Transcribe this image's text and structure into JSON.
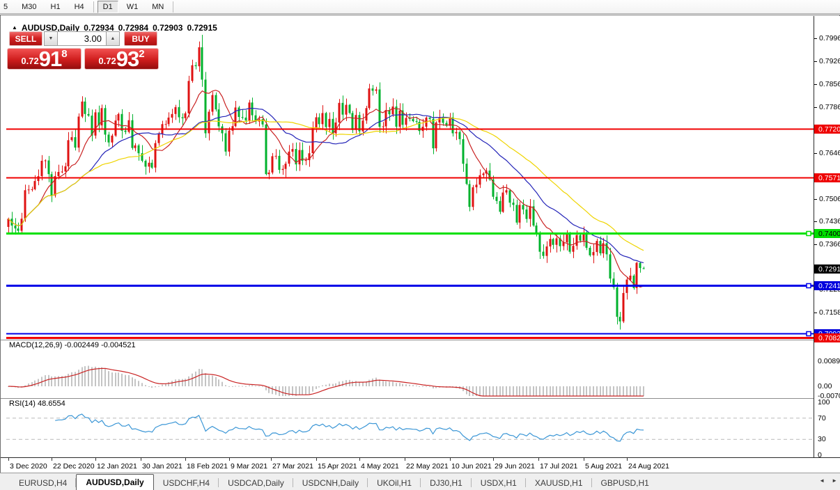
{
  "toolbar": {
    "buttons": [
      "5",
      "M30",
      "H1",
      "H4",
      "D1",
      "W1",
      "MN"
    ],
    "active": "D1"
  },
  "title": {
    "symbol": "AUDUSD,Daily",
    "open": "0.72934",
    "high": "0.72984",
    "low": "0.72903",
    "close": "0.72915"
  },
  "trade_panel": {
    "sell_label": "SELL",
    "buy_label": "BUY",
    "volume": "3.00",
    "sell_price_prefix": "0.72",
    "sell_price_big": "91",
    "sell_price_sup": "8",
    "buy_price_prefix": "0.72",
    "buy_price_big": "93",
    "buy_price_sup": "2"
  },
  "chart_data": {
    "type": "candlestick",
    "symbol": "AUDUSD",
    "timeframe": "Daily",
    "up_color": "#df1212",
    "down_color": "#00b22d",
    "first_open": 0.742,
    "closes": [
      0.7445,
      0.7424,
      0.7415,
      0.7408,
      0.7445,
      0.7532,
      0.7534,
      0.7535,
      0.756,
      0.7575,
      0.7622,
      0.7623,
      0.7581,
      0.7516,
      0.7575,
      0.7588,
      0.7589,
      0.7605,
      0.7685,
      0.7694,
      0.7662,
      0.7757,
      0.7803,
      0.7765,
      0.776,
      0.7699,
      0.777,
      0.773,
      0.7783,
      0.7702,
      0.7678,
      0.7699,
      0.7745,
      0.7765,
      0.7714,
      0.771,
      0.7746,
      0.7661,
      0.7669,
      0.7645,
      0.7622,
      0.7604,
      0.7616,
      0.7601,
      0.7676,
      0.7705,
      0.7734,
      0.7734,
      0.7754,
      0.7765,
      0.7786,
      0.7755,
      0.7752,
      0.7767,
      0.7866,
      0.7914,
      0.7911,
      0.7969,
      0.787,
      0.7706,
      0.7772,
      0.7823,
      0.7779,
      0.7727,
      0.7706,
      0.765,
      0.7714,
      0.7728,
      0.7785,
      0.7756,
      0.7754,
      0.7745,
      0.78,
      0.7761,
      0.7742,
      0.7749,
      0.7733,
      0.7581,
      0.7586,
      0.7636,
      0.7637,
      0.7594,
      0.7597,
      0.7613,
      0.765,
      0.7658,
      0.7611,
      0.7655,
      0.7622,
      0.7624,
      0.7645,
      0.7724,
      0.7755,
      0.7734,
      0.7768,
      0.7725,
      0.775,
      0.7706,
      0.7739,
      0.7799,
      0.7763,
      0.7793,
      0.7768,
      0.7716,
      0.7762,
      0.7712,
      0.7745,
      0.7783,
      0.7843,
      0.7836,
      0.784,
      0.7726,
      0.7727,
      0.7777,
      0.7764,
      0.7788,
      0.7726,
      0.7776,
      0.7732,
      0.7753,
      0.775,
      0.7743,
      0.7741,
      0.7713,
      0.7726,
      0.7754,
      0.775,
      0.766,
      0.7739,
      0.7755,
      0.7738,
      0.7729,
      0.7755,
      0.7706,
      0.771,
      0.7688,
      0.7613,
      0.7551,
      0.7481,
      0.7541,
      0.7549,
      0.7578,
      0.7583,
      0.7592,
      0.7565,
      0.7512,
      0.7499,
      0.7466,
      0.7525,
      0.7532,
      0.7494,
      0.7487,
      0.7433,
      0.7487,
      0.7473,
      0.7444,
      0.7483,
      0.7424,
      0.7401,
      0.7344,
      0.7331,
      0.736,
      0.7383,
      0.7365,
      0.7385,
      0.7361,
      0.7373,
      0.7398,
      0.7344,
      0.7362,
      0.7395,
      0.7378,
      0.74,
      0.7356,
      0.7333,
      0.7343,
      0.7377,
      0.7339,
      0.737,
      0.7336,
      0.7262,
      0.7235,
      0.7145,
      0.7131,
      0.7218,
      0.7259,
      0.7271,
      0.7233,
      0.731,
      0.7294,
      0.72915
    ],
    "wick_overrides": {
      "58": {
        "h": 0.8007
      },
      "59": {
        "l": 0.7692
      },
      "183": {
        "l": 0.7106
      },
      "190": {
        "o": 0.72934,
        "h": 0.72984,
        "l": 0.72903
      }
    },
    "moving_averages": [
      {
        "period": 10,
        "color": "#c92222"
      },
      {
        "period": 25,
        "color": "#2424b8"
      },
      {
        "period": 40,
        "color": "#efd400"
      }
    ],
    "levels": [
      {
        "price": 0.772,
        "label": "0.77200",
        "color": "#f00000",
        "width": 2,
        "badge_bg": "#ee0000",
        "badge_fg": "#ffffff",
        "handle": false
      },
      {
        "price": 0.75716,
        "label": "0.75716",
        "color": "#f00000",
        "width": 2,
        "badge_bg": "#ee0000",
        "badge_fg": "#ffffff",
        "handle": false
      },
      {
        "price": 0.74007,
        "label": "0.74007",
        "color": "#00e000",
        "width": 3,
        "badge_bg": "#00dd00",
        "badge_fg": "#000000",
        "handle": true
      },
      {
        "price": 0.72411,
        "label": "0.72411",
        "color": "#0000e8",
        "width": 3,
        "badge_bg": "#0000dd",
        "badge_fg": "#ffffff",
        "handle": true
      },
      {
        "price": 0.70936,
        "label": "0.70936",
        "color": "#0000e8",
        "width": 2,
        "badge_bg": "#0000dd",
        "badge_fg": "#ffffff",
        "handle": true
      },
      {
        "price": 0.7082,
        "label": "0.70820",
        "color": "#f00000",
        "width": 3,
        "badge_bg": "#ee0000",
        "badge_fg": "#ffffff",
        "handle": false
      }
    ],
    "current_price": {
      "value": 0.72915,
      "label": "0.72915",
      "badge_bg": "#000000",
      "badge_fg": "#ffffff"
    },
    "y_ticks": [
      "0.79960",
      "0.79260",
      "0.78560",
      "0.77860",
      "0.76460",
      "0.75060",
      "0.74360",
      "0.73660",
      "0.72280",
      "0.71580"
    ],
    "macd": {
      "fast": 12,
      "slow": 26,
      "signal": 9,
      "hist_color": "#c4c4c4",
      "signal_color": "#c92222"
    },
    "rsi": {
      "period": 14,
      "color": "#3a96d6",
      "guides": [
        70,
        30
      ]
    }
  },
  "macd_panel": {
    "label": "MACD(12,26,9)",
    "value_main": "-0.002449",
    "value_signal": "-0.004521",
    "axis_labels": [
      {
        "text": "0.00890",
        "value": 0.0089
      },
      {
        "text": "0.00",
        "value": 0
      },
      {
        "text": "-0.00701",
        "value": -0.00701
      }
    ]
  },
  "rsi_panel": {
    "label": "RSI(14)",
    "value": "48.6554",
    "axis_labels": [
      {
        "text": "100",
        "value": 100
      },
      {
        "text": "70",
        "value": 70
      },
      {
        "text": "30",
        "value": 30
      },
      {
        "text": "0",
        "value": 0
      }
    ]
  },
  "date_axis": {
    "ticks": [
      {
        "label": "3 Dec 2020",
        "index": 0
      },
      {
        "label": "22 Dec 2020",
        "index": 13
      },
      {
        "label": "12 Jan 2021",
        "index": 26
      },
      {
        "label": "30 Jan 2021",
        "index": 39.5
      },
      {
        "label": "18 Feb 2021",
        "index": 53
      },
      {
        "label": "9 Mar 2021",
        "index": 66
      },
      {
        "label": "27 Mar 2021",
        "index": 78.5
      },
      {
        "label": "15 Apr 2021",
        "index": 92
      },
      {
        "label": "4 May 2021",
        "index": 105
      },
      {
        "label": "22 May 2021",
        "index": 118.5
      },
      {
        "label": "10 Jun 2021",
        "index": 132
      },
      {
        "label": "29 Jun 2021",
        "index": 145
      },
      {
        "label": "17 Jul 2021",
        "index": 158.5
      },
      {
        "label": "5 Aug 2021",
        "index": 172
      },
      {
        "label": "24 Aug 2021",
        "index": 185
      }
    ]
  },
  "tabs": {
    "items": [
      "EURUSD,H4",
      "AUDUSD,Daily",
      "USDCHF,H4",
      "USDCAD,Daily",
      "USDCNH,Daily",
      "UKOil,H1",
      "DJ30,H1",
      "USDX,H1",
      "XAUUSD,H1",
      "GBPUSD,H1"
    ],
    "active": "AUDUSD,Daily",
    "scroll_left_icon": "◄",
    "scroll_right_icon": "►"
  }
}
